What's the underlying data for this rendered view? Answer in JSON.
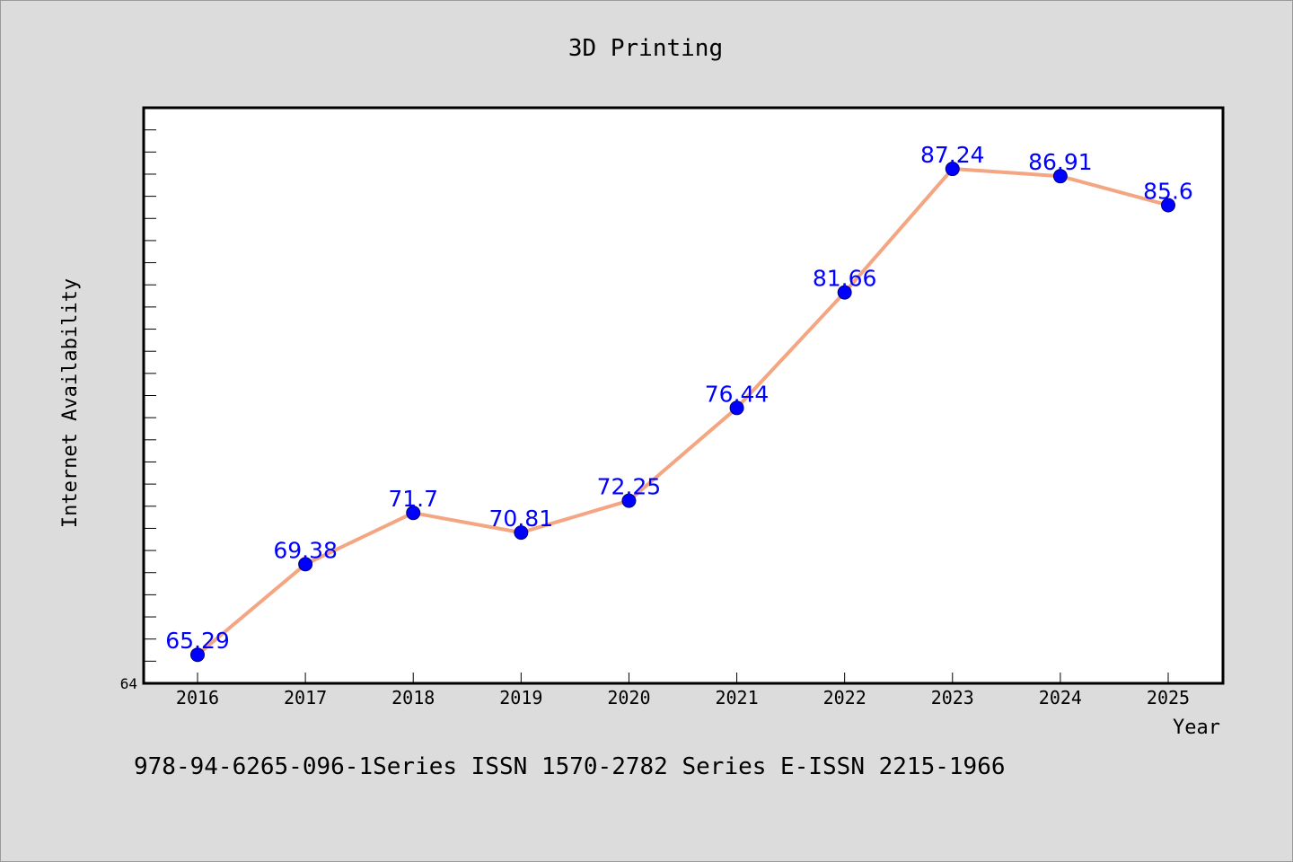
{
  "chart_data": {
    "type": "line",
    "title": "3D Printing",
    "xlabel": "Year",
    "ylabel": "Internet Availability",
    "categories": [
      "2016",
      "2017",
      "2018",
      "2019",
      "2020",
      "2021",
      "2022",
      "2023",
      "2024",
      "2025"
    ],
    "series": [
      {
        "values": [
          65.29,
          69.38,
          71.7,
          70.81,
          72.25,
          76.44,
          81.66,
          87.24,
          86.91,
          85.6
        ],
        "labels": [
          "65.29",
          "69.38",
          "71.7",
          "70.81",
          "72.25",
          "76.44",
          "81.66",
          "87.24",
          "86.91",
          "85.6"
        ],
        "line_color": "#f4a582",
        "marker_color": "#0000ff"
      }
    ],
    "ylim": [
      64,
      90
    ],
    "yticks_labeled": [
      "64"
    ],
    "grid": false,
    "legend": "none"
  },
  "footer": {
    "text": "978-94-6265-096-1Series ISSN 1570-2782 Series E-ISSN 2215-1966"
  },
  "colors": {
    "background": "#dcdcdc",
    "plot_background": "#ffffff",
    "line": "#f4a582",
    "marker": "#0000ff",
    "data_label": "#0000ff"
  }
}
